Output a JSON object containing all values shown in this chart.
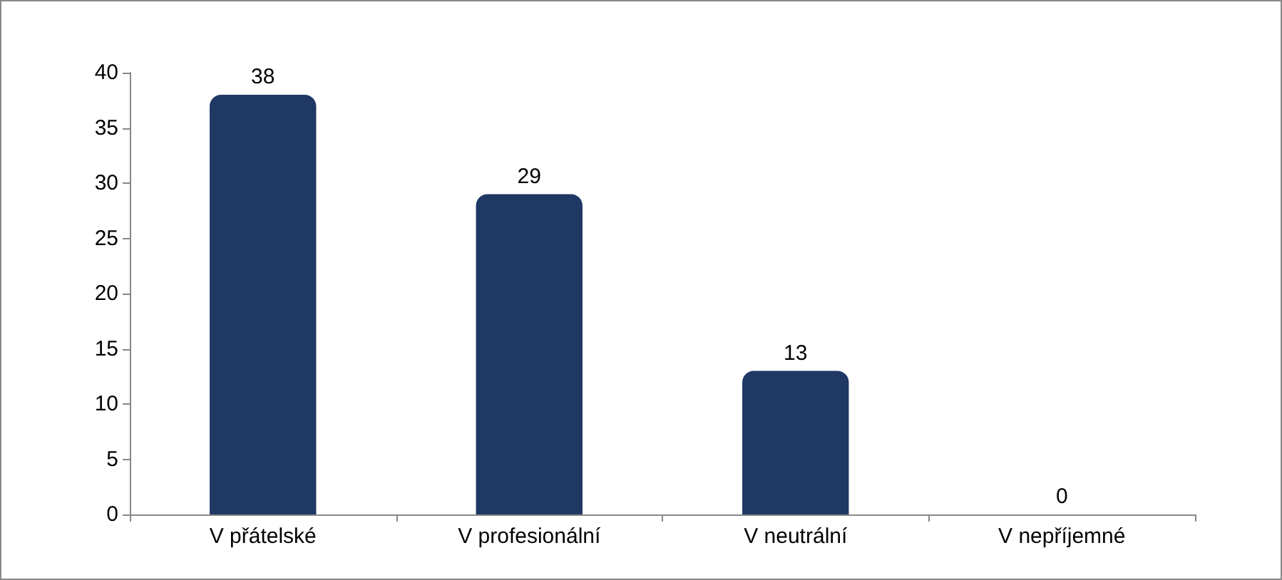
{
  "chart_data": {
    "type": "bar",
    "categories": [
      "V přátelské",
      "V profesionální",
      "V neutrální",
      "V nepříjemné"
    ],
    "values": [
      38,
      29,
      13,
      0
    ],
    "color": "#1f3864",
    "ylim": [
      0,
      40
    ],
    "yticks": [
      0,
      5,
      10,
      15,
      20,
      25,
      30,
      35,
      40
    ],
    "grid": false,
    "data_labels": true
  }
}
